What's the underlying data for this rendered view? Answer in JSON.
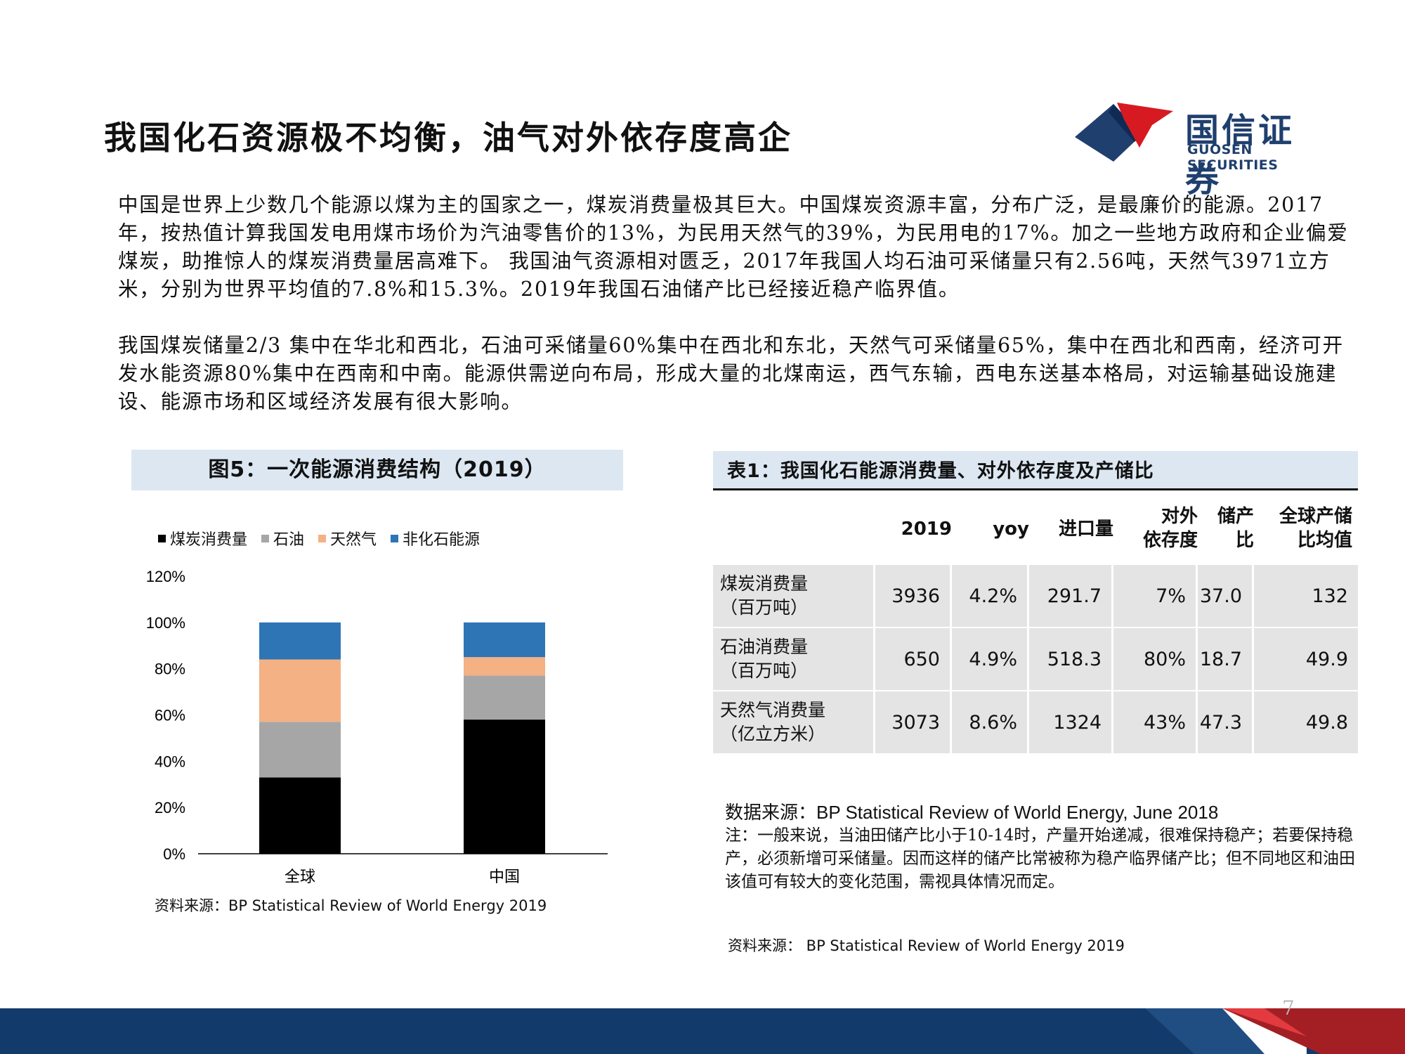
{
  "title": "我国化石资源极不均衡，油气对外依存度高企",
  "logo": {
    "cn": "国信证券",
    "en": "GUOSEN SECURITIES"
  },
  "paragraph1": "中国是世界上少数几个能源以煤为主的国家之一，煤炭消费量极其巨大。中国煤炭资源丰富，分布广泛，是最廉价的能源。2017 年，按热值计算我国发电用煤市场价为汽油零售价的13%，为民用天然气的39%，为民用电的17%。加之一些地方政府和企业偏爱煤炭，助推惊人的煤炭消费量居高难下。 我国油气资源相对匮乏，2017年我国人均石油可采储量只有2.56吨，天然气3971立方米，分别为世界平均值的7.8%和15.3%。2019年我国石油储产比已经接近稳产临界值。",
  "paragraph2": "我国煤炭储量2/3 集中在华北和西北，石油可采储量60%集中在西北和东北，天然气可采储量65%，集中在西北和西南，经济可开发水能资源80%集中在西南和中南。能源供需逆向布局，形成大量的北煤南运，西气东输，西电东送基本格局，对运输基础设施建设、能源市场和区域经济发展有很大影响。",
  "figure": {
    "heading": "图5：一次能源消费结构（2019）",
    "source": "资料来源：BP Statistical Review of World Energy 2019"
  },
  "chart_data": {
    "type": "bar",
    "stacked": true,
    "categories": [
      "全球",
      "中国"
    ],
    "series": [
      {
        "name": "煤炭消费量",
        "values": [
          33,
          58
        ],
        "color": "#000000"
      },
      {
        "name": "石油",
        "values": [
          24,
          19
        ],
        "color": "#a6a6a6"
      },
      {
        "name": "天然气",
        "values": [
          27,
          8
        ],
        "color": "#f4b183"
      },
      {
        "name": "非化石能源",
        "values": [
          16,
          15
        ],
        "color": "#2e75b6"
      }
    ],
    "ylim": [
      0,
      120
    ],
    "yticks": [
      "0%",
      "20%",
      "40%",
      "60%",
      "80%",
      "100%",
      "120%"
    ],
    "legend_position": "top",
    "grid": false
  },
  "table": {
    "heading": "表1：我国化石能源消费量、对外依存度及产储比",
    "headers": [
      "2019",
      "yoy",
      "进口量",
      "对外\n依存度",
      "储产\n比",
      "全球产储\n比均值"
    ],
    "rows": [
      {
        "name": "煤炭消费量\n（百万吨）",
        "values": [
          "3936",
          "4.2%",
          "291.7",
          "7%",
          "37.0",
          "132"
        ]
      },
      {
        "name": "石油消费量\n（百万吨）",
        "values": [
          "650",
          "4.9%",
          "518.3",
          "80%",
          "18.7",
          "49.9"
        ]
      },
      {
        "name": "天然气消费量\n（亿立方米）",
        "values": [
          "3073",
          "8.6%",
          "1324",
          "43%",
          "47.3",
          "49.8"
        ]
      }
    ],
    "data_source": "数据来源：BP Statistical Review of World Energy, June 2018",
    "note": "注：一般来说，当油田储产比小于10-14时，产量开始递减，很难保持稳产；若要保持稳产，必须新增可采储量。因而这样的储产比常被称为稳产临界储产比；但不同地区和油田该值可有较大的变化范围，需视具体情况而定。",
    "source": "资料来源： BP Statistical Review of World Energy 2019"
  },
  "page_number": "7"
}
